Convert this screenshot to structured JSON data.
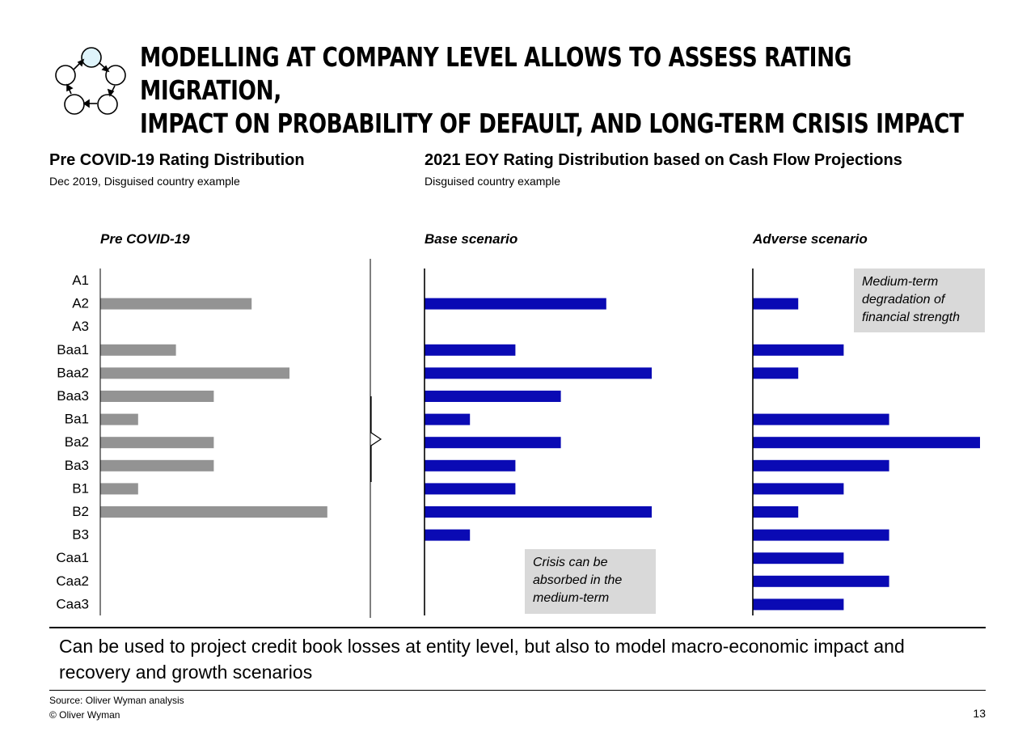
{
  "header": {
    "title_line1": "MODELLING AT COMPANY LEVEL ALLOWS TO ASSESS RATING MIGRATION,",
    "title_line2": "IMPACT ON PROBABILITY OF DEFAULT, AND LONG-TERM CRISIS IMPACT"
  },
  "left_section": {
    "title": "Pre COVID-19 Rating Distribution",
    "subtitle": "Dec 2019, Disguised country example"
  },
  "right_section": {
    "title": "2021 EOY Rating Distribution based on Cash Flow Projections",
    "subtitle": "Disguised country example"
  },
  "notes": {
    "base": "Crisis can be absorbed in the medium-term",
    "adverse": "Medium-term degradation of financial strength"
  },
  "takeaway": "Can be used to project credit book losses at entity level, but also to model macro-economic impact and recovery and growth scenarios",
  "footer": {
    "source": "Source: Oliver Wyman analysis",
    "copyright": "© Oliver Wyman",
    "page_number": "13"
  },
  "colors": {
    "pre_covid_bar": "#939393",
    "scenario_bar": "#0a0ab4"
  },
  "chart_data": [
    {
      "type": "bar",
      "orientation": "horizontal",
      "title": "Pre COVID-19",
      "categories": [
        "A1",
        "A2",
        "A3",
        "Baa1",
        "Baa2",
        "Baa3",
        "Ba1",
        "Ba2",
        "Ba3",
        "B1",
        "B2",
        "B3",
        "Caa1",
        "Caa2",
        "Caa3"
      ],
      "values": [
        0,
        4,
        0,
        2,
        5,
        3,
        1,
        3,
        3,
        1,
        6,
        0,
        0,
        0,
        0
      ],
      "color": "#939393"
    },
    {
      "type": "bar",
      "orientation": "horizontal",
      "title": "Base scenario",
      "categories": [
        "A1",
        "A2",
        "A3",
        "Baa1",
        "Baa2",
        "Baa3",
        "Ba1",
        "Ba2",
        "Ba3",
        "B1",
        "B2",
        "B3",
        "Caa1",
        "Caa2",
        "Caa3"
      ],
      "values": [
        0,
        4,
        0,
        2,
        5,
        3,
        1,
        3,
        2,
        2,
        5,
        1,
        0,
        0,
        0
      ],
      "color": "#0a0ab4"
    },
    {
      "type": "bar",
      "orientation": "horizontal",
      "title": "Adverse scenario",
      "categories": [
        "A1",
        "A2",
        "A3",
        "Baa1",
        "Baa2",
        "Baa3",
        "Ba1",
        "Ba2",
        "Ba3",
        "B1",
        "B2",
        "B3",
        "Caa1",
        "Caa2",
        "Caa3"
      ],
      "values": [
        0,
        1,
        0,
        2,
        1,
        0,
        3,
        5,
        3,
        2,
        1,
        3,
        2,
        3,
        2
      ],
      "color": "#0a0ab4"
    }
  ]
}
